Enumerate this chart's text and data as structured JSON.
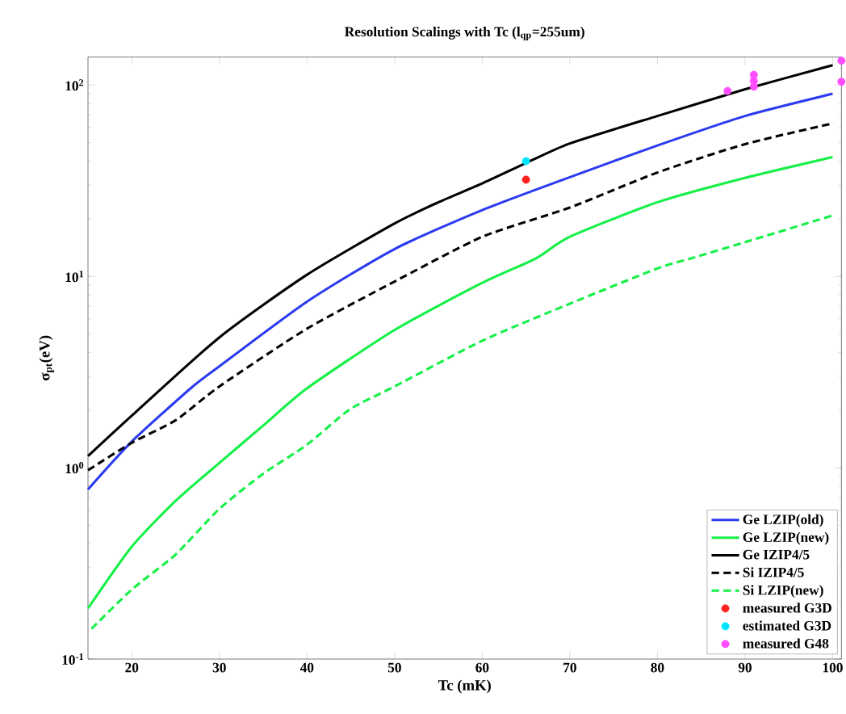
{
  "chart_data": {
    "type": "line",
    "title": "Resolution Scalings with Tc (l$_{qp}$=255um)",
    "xlabel": "Tc (mK)",
    "ylabel": "σ$_{pt}$(eV)",
    "log": "y",
    "xlim": [
      15,
      101
    ],
    "ylim": [
      0.1,
      140
    ],
    "xticks": [
      20,
      30,
      40,
      50,
      60,
      70,
      80,
      90,
      100
    ],
    "yticks": [
      {
        "value": 0.1,
        "label": "10$^{-1}$"
      },
      {
        "value": 1,
        "label": "10$^{0}$"
      },
      {
        "value": 10,
        "label": "10$^{1}$"
      },
      {
        "value": 100,
        "label": "10$^{2}$"
      }
    ],
    "legend": "bottom right",
    "series": [
      {
        "name": "Ge LZIP(old)",
        "color": "#2b3bef",
        "line_style": "solid",
        "x": [
          15,
          20,
          26.8,
          30,
          40,
          50,
          60,
          70,
          80,
          90,
          100
        ],
        "values": [
          0.77,
          1.37,
          2.62,
          3.39,
          7.38,
          13.9,
          22.2,
          33.0,
          48.3,
          68.9,
          90
        ]
      },
      {
        "name": "Ge LZIP(new)",
        "color": "#14f046",
        "line_style": "solid",
        "x": [
          15,
          20,
          25,
          30,
          35,
          40,
          50,
          60,
          66.1,
          70,
          80,
          90,
          100
        ],
        "values": [
          0.184,
          0.387,
          0.671,
          1.06,
          1.66,
          2.6,
          5.25,
          9.25,
          12.4,
          16.1,
          24.4,
          32.7,
          42
        ]
      },
      {
        "name": "Ge IZIP4/5",
        "color": "#000000",
        "line_style": "solid",
        "x": [
          15,
          20,
          30,
          40,
          50,
          55,
          60,
          65,
          70,
          80,
          90,
          100
        ],
        "values": [
          1.15,
          1.87,
          4.8,
          10.2,
          18.9,
          24.4,
          30.6,
          39.1,
          49.5,
          68.9,
          95,
          127
        ]
      },
      {
        "name": "Si IZIP4/5",
        "color": "#000000",
        "line_style": "dashed",
        "x": [
          15,
          20,
          25,
          30,
          40,
          50,
          60,
          70,
          80,
          90,
          100
        ],
        "values": [
          0.97,
          1.35,
          1.77,
          2.66,
          5.33,
          9.4,
          16.1,
          22.9,
          34.9,
          49.1,
          63
        ]
      },
      {
        "name": "Si LZIP(new)",
        "color": "#14f046",
        "line_style": "dashed",
        "x": [
          15.4,
          20,
          25,
          30,
          35,
          40,
          44.9,
          50,
          60,
          70,
          80,
          83.8,
          90,
          100
        ],
        "values": [
          0.144,
          0.231,
          0.352,
          0.61,
          0.93,
          1.32,
          2.02,
          2.66,
          4.61,
          7.2,
          11.0,
          12.4,
          15.1,
          20.8
        ]
      },
      {
        "name": "measured G3D",
        "type": "scatter",
        "marker": "circle",
        "color": "#ff2020",
        "x": [
          65
        ],
        "values": [
          32
        ]
      },
      {
        "name": "estimated G3D",
        "type": "scatter",
        "marker": "circle",
        "color": "#00e5ff",
        "x": [
          65
        ],
        "values": [
          40
        ]
      },
      {
        "name": "measured G48",
        "type": "scatter",
        "marker": "circle",
        "color": "#ff4dff",
        "x": [
          88,
          91,
          91,
          91,
          101,
          101
        ],
        "values": [
          93,
          113,
          105,
          98,
          134,
          104
        ]
      }
    ]
  }
}
